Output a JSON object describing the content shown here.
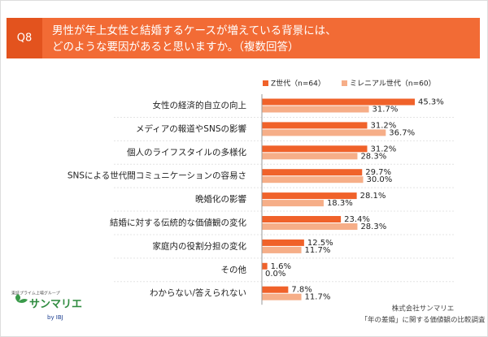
{
  "chart_data": {
    "type": "hbar",
    "question_label": "Q8",
    "title": [
      "男性が年上女性と結婚するケースが増えている背景には、",
      "どのような要因があると思いますか。（複数回答）"
    ],
    "categories": [
      "女性の経済的自立の向上",
      "メディアの報道やSNSの影響",
      "個人のライフスタイルの多様化",
      "SNSによる世代間コミュニケーションの容易さ",
      "晩婚化の影響",
      "結婚に対する伝統的な価値観の変化",
      "家庭内の役割分担の変化",
      "その他",
      "わからない/答えられない"
    ],
    "series": [
      {
        "name": "Z世代（n=64）",
        "color": "#f0622a",
        "values": [
          45.3,
          31.2,
          31.2,
          29.7,
          28.1,
          23.4,
          12.5,
          1.6,
          7.8
        ],
        "value_labels": [
          "45.3%",
          "31.2%",
          "31.2%",
          "29.7%",
          "28.1%",
          "23.4%",
          "12.5%",
          "1.6%",
          "7.8%"
        ]
      },
      {
        "name": "ミレニアル世代（n=60）",
        "color": "#f6ae88",
        "values": [
          31.7,
          36.7,
          28.3,
          30.0,
          18.3,
          28.3,
          11.7,
          0.0,
          11.7
        ],
        "value_labels": [
          "31.7%",
          "36.7%",
          "28.3%",
          "30.0%",
          "18.3%",
          "28.3%",
          "11.7%",
          "0.0%",
          "11.7%"
        ]
      }
    ]
  },
  "footer": {
    "logo_group": "東証プライム上場グループ",
    "logo_name": "サンマリエ",
    "logo_by": "by IBJ",
    "company": "株式会社サンマリエ",
    "survey": "「年の差婚」に関する価値観の比較調査"
  }
}
